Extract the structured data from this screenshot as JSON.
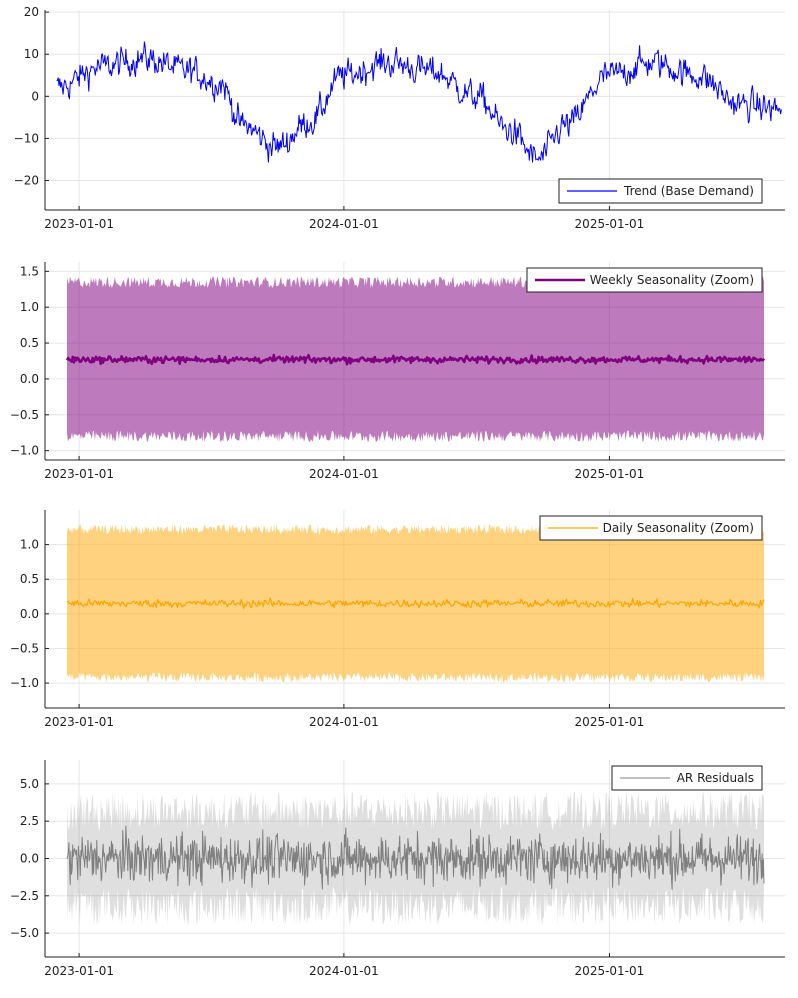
{
  "chart_data": [
    {
      "type": "line",
      "title": "",
      "xlabel": "",
      "ylabel": "",
      "x_range": [
        "2022-11-15",
        "2025-08-31"
      ],
      "x_ticks": [
        "2023-01-01",
        "2024-01-01",
        "2025-01-01"
      ],
      "ylim": [
        -27,
        20.5
      ],
      "y_ticks": [
        -20,
        -10,
        0,
        10,
        20
      ],
      "y_tick_labels": [
        "−20",
        "−10",
        "0",
        "10",
        "20"
      ],
      "grid": true,
      "legend_position": "bottom-right",
      "series": [
        {
          "name": "Trend (Base Demand)",
          "color": "#0000ff",
          "style": "noisy-line",
          "control_points": [
            [
              "2022-12-01",
              2
            ],
            [
              "2023-02-01",
              7
            ],
            [
              "2023-04-01",
              9
            ],
            [
              "2023-06-01",
              6
            ],
            [
              "2023-07-15",
              3
            ],
            [
              "2023-08-15",
              -7
            ],
            [
              "2023-10-01",
              -12
            ],
            [
              "2023-11-15",
              -6
            ],
            [
              "2024-01-01",
              5
            ],
            [
              "2024-03-01",
              8
            ],
            [
              "2024-05-01",
              6
            ],
            [
              "2024-07-01",
              0
            ],
            [
              "2024-08-15",
              -8
            ],
            [
              "2024-09-25",
              -15
            ],
            [
              "2024-11-01",
              -7
            ],
            [
              "2025-01-01",
              5
            ],
            [
              "2025-03-01",
              8
            ],
            [
              "2025-05-01",
              5
            ],
            [
              "2025-07-01",
              -2
            ],
            [
              "2025-08-26",
              -3
            ]
          ],
          "noise_amplitude": 3.5
        }
      ]
    },
    {
      "type": "area",
      "title": "",
      "xlabel": "",
      "ylabel": "",
      "x_range": [
        "2022-11-15",
        "2025-08-31"
      ],
      "x_ticks": [
        "2023-01-01",
        "2024-01-01",
        "2025-01-01"
      ],
      "ylim": [
        -1.13,
        1.63
      ],
      "y_ticks": [
        -1.0,
        -0.5,
        0.0,
        0.5,
        1.0,
        1.5
      ],
      "y_tick_labels": [
        "−1.0",
        "−0.5",
        "0.0",
        "0.5",
        "1.0",
        "1.5"
      ],
      "grid": true,
      "legend_position": "top-right",
      "band": {
        "color": "#800080",
        "opacity": 0.52,
        "upper": 1.35,
        "lower": -0.8,
        "noise": 0.08
      },
      "series": [
        {
          "name": "Weekly Seasonality (Zoom)",
          "color": "#800080",
          "style": "mean-line",
          "mean": 0.27,
          "noise_amplitude": 0.04,
          "stroke_width": 2.5
        }
      ]
    },
    {
      "type": "area",
      "title": "",
      "xlabel": "",
      "ylabel": "",
      "x_range": [
        "2022-11-15",
        "2025-08-31"
      ],
      "x_ticks": [
        "2023-01-01",
        "2024-01-01",
        "2025-01-01"
      ],
      "ylim": [
        -1.36,
        1.5
      ],
      "y_ticks": [
        -1.0,
        -0.5,
        0.0,
        0.5,
        1.0
      ],
      "y_tick_labels": [
        "−1.0",
        "−0.5",
        "0.0",
        "0.5",
        "1.0"
      ],
      "grid": true,
      "legend_position": "top-right",
      "band": {
        "color": "#ffa500",
        "opacity": 0.5,
        "upper": 1.22,
        "lower": -0.92,
        "noise": 0.07
      },
      "series": [
        {
          "name": "Daily Seasonality (Zoom)",
          "color": "#ffa500",
          "style": "mean-line",
          "mean": 0.15,
          "noise_amplitude": 0.05,
          "stroke_width": 1.2
        }
      ]
    },
    {
      "type": "area",
      "title": "",
      "xlabel": "",
      "ylabel": "",
      "x_range": [
        "2022-11-15",
        "2025-08-31"
      ],
      "x_ticks": [
        "2023-01-01",
        "2024-01-01",
        "2025-01-01"
      ],
      "ylim": [
        -6.6,
        6.6
      ],
      "y_ticks": [
        -5.0,
        -2.5,
        0.0,
        2.5,
        5.0
      ],
      "y_tick_labels": [
        "−5.0",
        "−2.5",
        "0.0",
        "2.5",
        "5.0"
      ],
      "grid": true,
      "legend_position": "top-right",
      "band": {
        "color": "#808080",
        "opacity": 0.25,
        "upper": 3.2,
        "lower": -3.2,
        "noise": 1.3
      },
      "series": [
        {
          "name": "AR Residuals",
          "color": "#808080",
          "style": "noise-line",
          "mean": 0,
          "noise_amplitude": 1.4,
          "stroke_width": 1
        }
      ]
    }
  ]
}
